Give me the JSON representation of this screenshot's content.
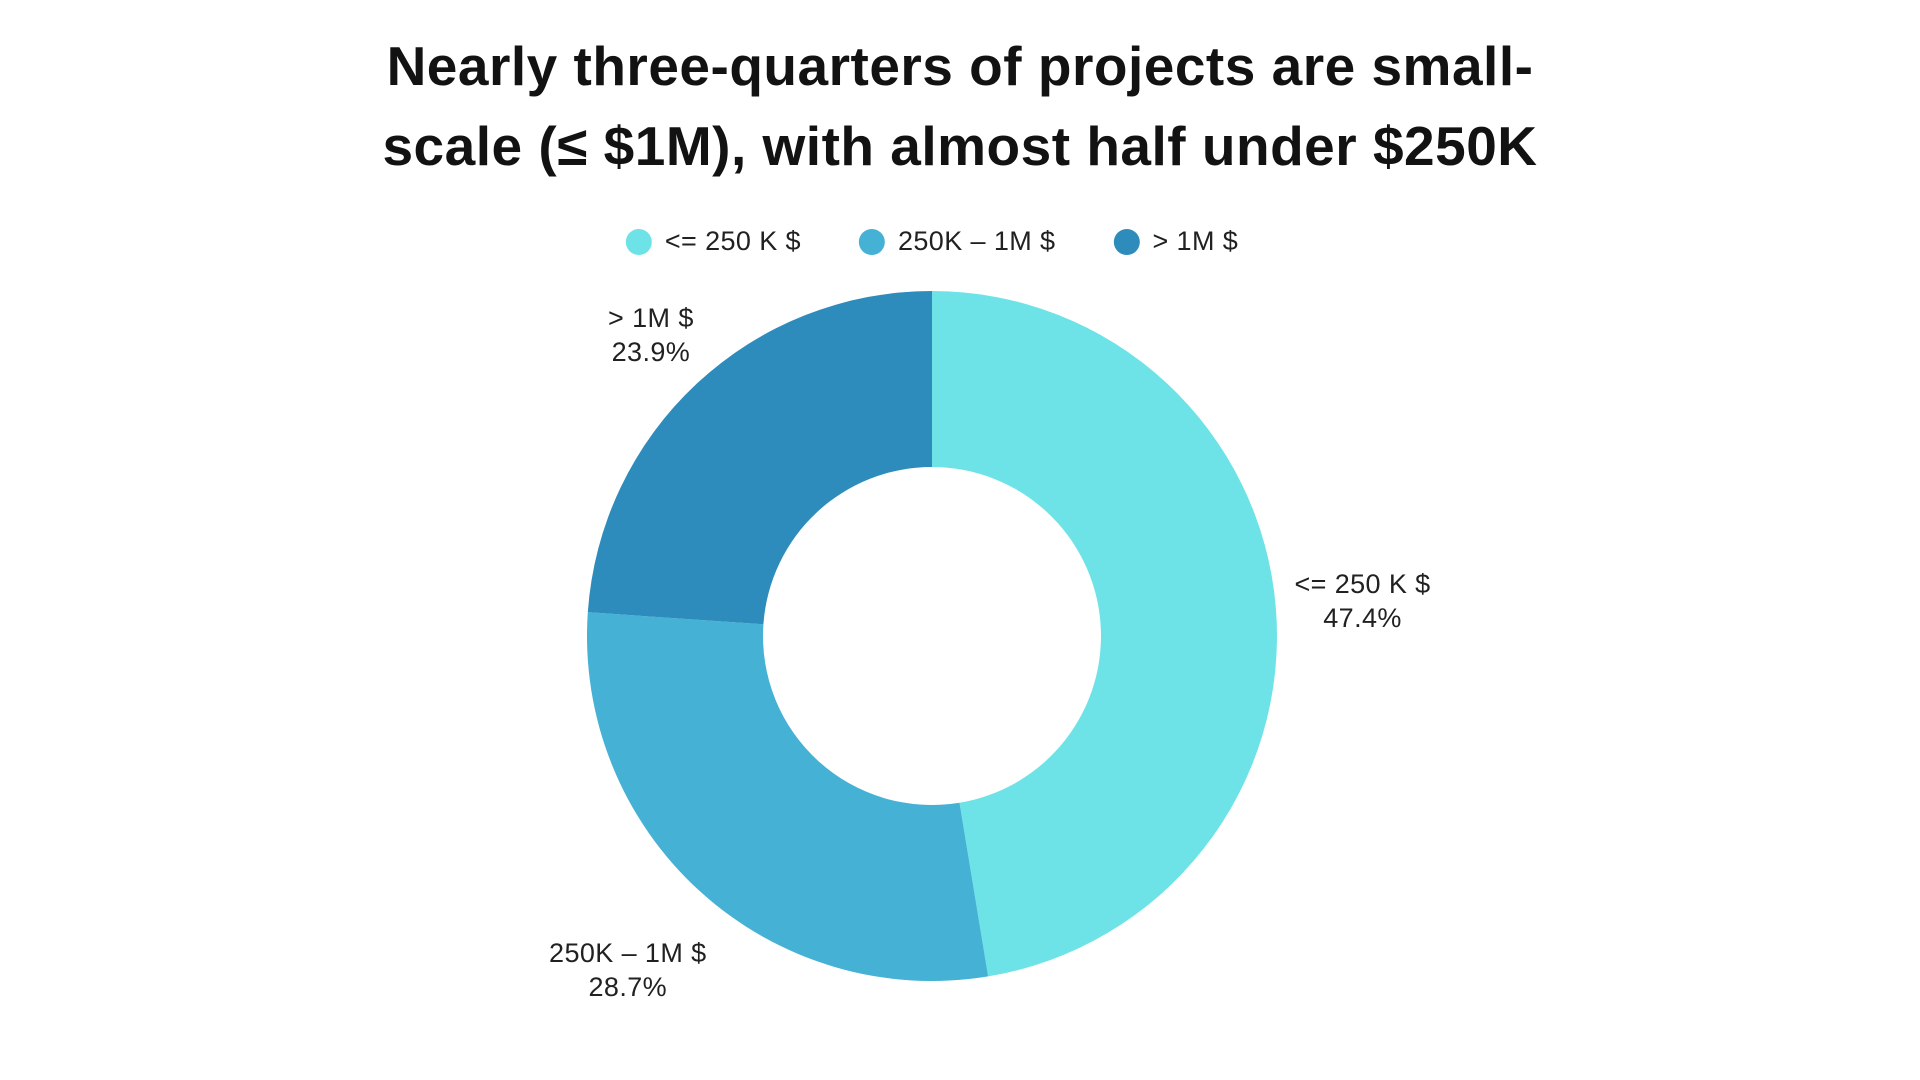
{
  "title": "Nearly three-quarters of projects are small-scale (≤ $1M), with almost half under $250K",
  "chart_data": {
    "type": "pie",
    "subtype": "donut",
    "title": "Nearly three-quarters of projects are small-scale (≤ $1M), with almost half under $250K",
    "title_lines": [
      "Nearly three-quarters of projects are small-",
      "scale (≤ $1M), with almost half under $250K"
    ],
    "categories": [
      "<= 250 K $",
      "250K – 1M $",
      "> 1M $"
    ],
    "values": [
      47.4,
      28.7,
      23.9
    ],
    "pct_labels": [
      "47.4%",
      "28.7%",
      "23.9%"
    ],
    "colors": [
      "#6de3e8",
      "#45b1d4",
      "#2e8cbc"
    ],
    "start_angle_deg": 0,
    "direction": "clockwise",
    "inner_radius_ratio": 0.49,
    "legend_position": "top",
    "background_color": "#ffffff",
    "text_color": "#212121"
  }
}
